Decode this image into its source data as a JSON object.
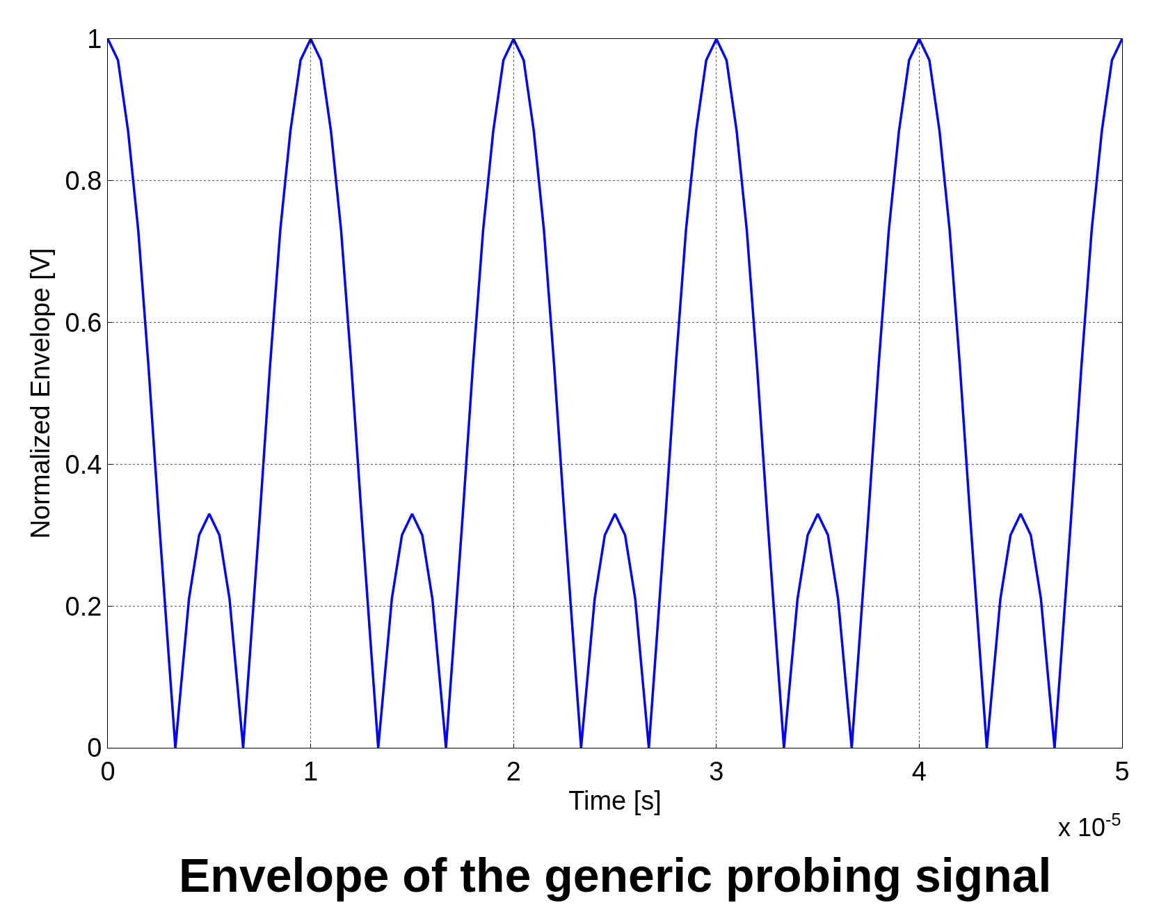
{
  "chart_data": {
    "type": "line",
    "title": "Envelope of the generic probing signal",
    "xlabel": "Time [s]",
    "ylabel": "Normalized Envelope [V]",
    "annotations": [
      "x 10$^{-5}$"
    ],
    "x": [
      0,
      0.05,
      0.1,
      0.15,
      0.2,
      0.25,
      0.3,
      0.333,
      0.4,
      0.45,
      0.5,
      0.55,
      0.6,
      0.667,
      0.7,
      0.75,
      0.8,
      0.85,
      0.9,
      0.95,
      1,
      1.05,
      1.1,
      1.15,
      1.2,
      1.25,
      1.3,
      1.333,
      1.4,
      1.45,
      1.5,
      1.55,
      1.6,
      1.667,
      1.7,
      1.75,
      1.8,
      1.85,
      1.9,
      1.95,
      2,
      2.05,
      2.1,
      2.15,
      2.2,
      2.25,
      2.3,
      2.333,
      2.4,
      2.45,
      2.5,
      2.55,
      2.6,
      2.667,
      2.7,
      2.75,
      2.8,
      2.85,
      2.9,
      2.95,
      3,
      3.05,
      3.1,
      3.15,
      3.2,
      3.25,
      3.3,
      3.333,
      3.4,
      3.45,
      3.5,
      3.55,
      3.6,
      3.667,
      3.7,
      3.75,
      3.8,
      3.85,
      3.9,
      3.95,
      4,
      4.05,
      4.1,
      4.15,
      4.2,
      4.25,
      4.3,
      4.333,
      4.4,
      4.45,
      4.5,
      4.55,
      4.6,
      4.667,
      4.7,
      4.75,
      4.8,
      4.85,
      4.9,
      4.95,
      5
    ],
    "series": [
      {
        "color": "#0000ff",
        "values": [
          1,
          0.97,
          0.87,
          0.73,
          0.54,
          0.33,
          0.13,
          0,
          0.21,
          0.3,
          0.33,
          0.3,
          0.21,
          0,
          0.13,
          0.33,
          0.54,
          0.73,
          0.87,
          0.97,
          1,
          0.97,
          0.87,
          0.73,
          0.54,
          0.33,
          0.13,
          0,
          0.21,
          0.3,
          0.33,
          0.3,
          0.21,
          0,
          0.13,
          0.33,
          0.54,
          0.73,
          0.87,
          0.97,
          1,
          0.97,
          0.87,
          0.73,
          0.54,
          0.33,
          0.13,
          0,
          0.21,
          0.3,
          0.33,
          0.3,
          0.21,
          0,
          0.13,
          0.33,
          0.54,
          0.73,
          0.87,
          0.97,
          1,
          0.97,
          0.87,
          0.73,
          0.54,
          0.33,
          0.13,
          0,
          0.21,
          0.3,
          0.33,
          0.3,
          0.21,
          0,
          0.13,
          0.33,
          0.54,
          0.73,
          0.87,
          0.97,
          1,
          0.97,
          0.87,
          0.73,
          0.54,
          0.33,
          0.13,
          0,
          0.21,
          0.3,
          0.33,
          0.3,
          0.21,
          0,
          0.13,
          0.33,
          0.54,
          0.73,
          0.87,
          0.97,
          1
        ]
      }
    ],
    "xlim": [
      0,
      5
    ],
    "xticks": [
      0,
      1,
      2,
      3,
      4,
      5
    ],
    "ylim": [
      0,
      1
    ],
    "yticks": [
      0,
      0.2,
      0.4,
      0.6,
      0.8,
      1
    ],
    "grid": true,
    "legend": false,
    "marker": "none",
    "line_style": "solid"
  }
}
